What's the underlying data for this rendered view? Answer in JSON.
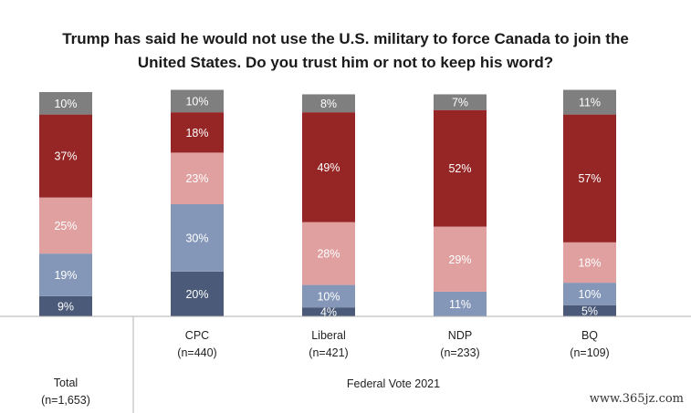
{
  "title_line1": "Trump has said he would not use the U.S. military to force Canada to join the",
  "title_line2": "United States. Do you trust him or not to keep his word?",
  "group_label": "Federal Vote 2021",
  "watermark": "www.365jz.com",
  "colors": {
    "definitely_trust": "#4a5a78",
    "probably_trust": "#8497b8",
    "probably_not": "#e0a0a0",
    "definitely_not": "#962626",
    "dont_know": "#7f7f7f"
  },
  "chart_data": {
    "type": "bar",
    "stacked": true,
    "categories": [
      "Total",
      "CPC",
      "Liberal",
      "NDP",
      "BQ"
    ],
    "category_counts": [
      "(n=1,653)",
      "(n=440)",
      "(n=421)",
      "(n=233)",
      "(n=109)"
    ],
    "series": [
      {
        "key": "definitely_trust",
        "values": [
          9,
          20,
          4,
          0,
          5
        ],
        "labels": [
          "9%",
          "20%",
          "4%",
          "",
          "5%"
        ]
      },
      {
        "key": "probably_trust",
        "values": [
          19,
          30,
          10,
          11,
          10
        ],
        "labels": [
          "19%",
          "30%",
          "10%",
          "11%",
          "10%"
        ]
      },
      {
        "key": "probably_not",
        "values": [
          25,
          23,
          28,
          29,
          18
        ],
        "labels": [
          "25%",
          "23%",
          "28%",
          "29%",
          "18%"
        ]
      },
      {
        "key": "definitely_not",
        "values": [
          37,
          18,
          49,
          52,
          57
        ],
        "labels": [
          "37%",
          "18%",
          "49%",
          "52%",
          "57%"
        ]
      },
      {
        "key": "dont_know",
        "values": [
          10,
          10,
          8,
          7,
          11
        ],
        "labels": [
          "10%",
          "10%",
          "8%",
          "7%",
          "11%"
        ]
      }
    ],
    "ylim": [
      0,
      100
    ]
  }
}
